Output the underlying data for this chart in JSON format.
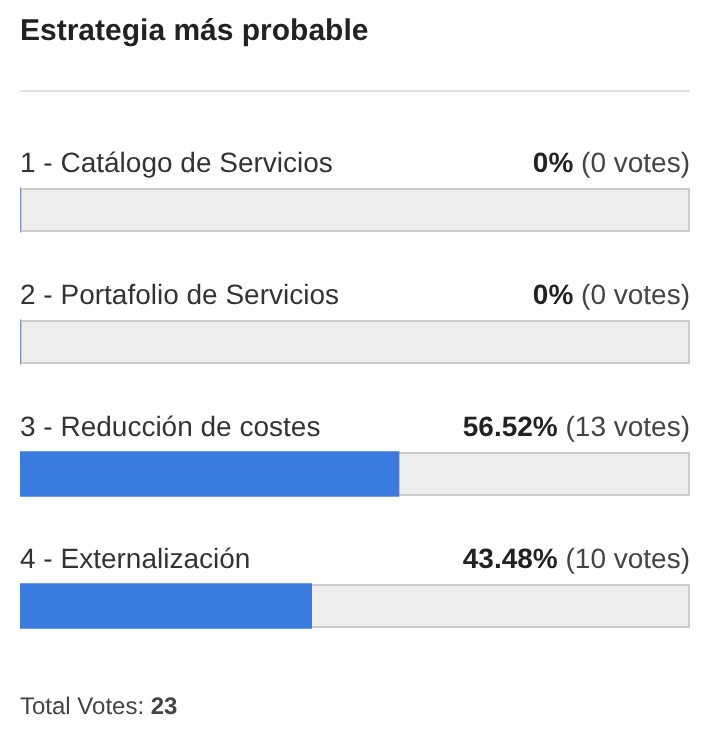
{
  "chart_data": {
    "type": "bar",
    "orientation": "horizontal",
    "title": "Estrategia más probable",
    "categories": [
      "1 - Catálogo de Servicios",
      "2 - Portafolio de Servicios",
      "3 - Reducción de costes",
      "4 - Externalización"
    ],
    "values": [
      0,
      0,
      56.52,
      43.48
    ],
    "color": "#3a7be0",
    "xlim": [
      0,
      100
    ],
    "tick_labels": false,
    "value_labels": [
      "0% (0 votes)",
      "0% (0 votes)",
      "56.52% (13 votes)",
      "43.48% (10 votes)"
    ],
    "annotations": [
      "Total Votes: 23"
    ]
  }
}
